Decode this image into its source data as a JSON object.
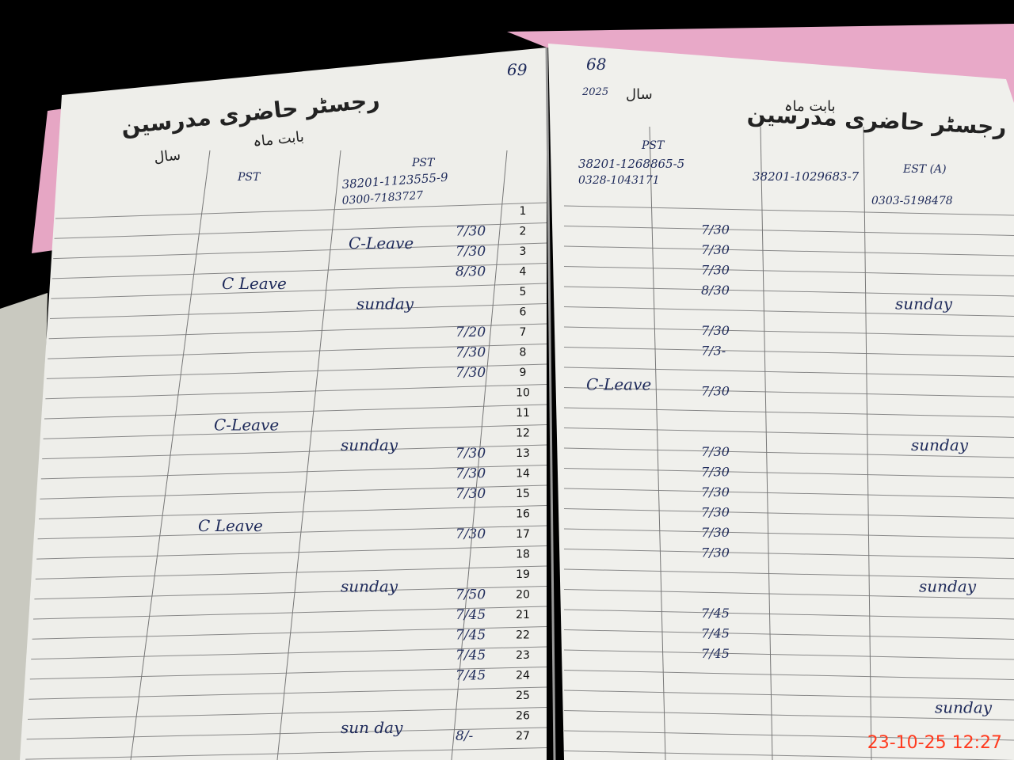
{
  "left_page": {
    "page_number": "69",
    "title": "رجسٹر حاضری مدرسین",
    "month_label": "بابت ماہ",
    "year_label": "سال",
    "designations": [
      "PST",
      "PST"
    ],
    "cnic": [
      "38201-1123555-9"
    ],
    "phone": [
      "0300-7183727"
    ],
    "dates": [
      "1",
      "2",
      "3",
      "4",
      "5",
      "6",
      "7",
      "8",
      "9",
      "10",
      "11",
      "12",
      "13",
      "14",
      "15",
      "16",
      "17",
      "18",
      "19",
      "20",
      "21",
      "22",
      "23",
      "24",
      "25",
      "26",
      "27"
    ],
    "notes": [
      "C-Leave",
      "C Leave",
      "sunday",
      "C-Leave",
      "sunday",
      "C Leave",
      "sunday",
      "sun day"
    ],
    "times": [
      "7/30",
      "7/30",
      "8/30",
      "7/20",
      "7/30",
      "7/30",
      "7/30",
      "7/30",
      "7/30",
      "7/30",
      "7/50",
      "7/45",
      "7/45",
      "7/45",
      "7/45",
      "8/-"
    ]
  },
  "right_page": {
    "page_number": "68",
    "year": "2025",
    "title": "رجسٹر حاضری مدرسین",
    "month_label": "بابت ماہ",
    "year_label": "سال",
    "designations": [
      "PST",
      "EST (A)"
    ],
    "cnic": [
      "38201-1268865-5",
      "38201-1029683-7"
    ],
    "phone": [
      "0328-1043171",
      "0303-5198478"
    ],
    "notes": [
      "sunday",
      "C-Leave",
      "sunday",
      "sunday",
      "sunday"
    ],
    "times": [
      "7/30",
      "7/30",
      "7/30",
      "8/30",
      "7/30",
      "7/3-",
      "7/30",
      "7/30",
      "7/30",
      "7/30",
      "7/30",
      "7/30",
      "7/30",
      "7/45",
      "7/45",
      "7/45"
    ]
  },
  "timestamp": "23-10-25 12:27"
}
